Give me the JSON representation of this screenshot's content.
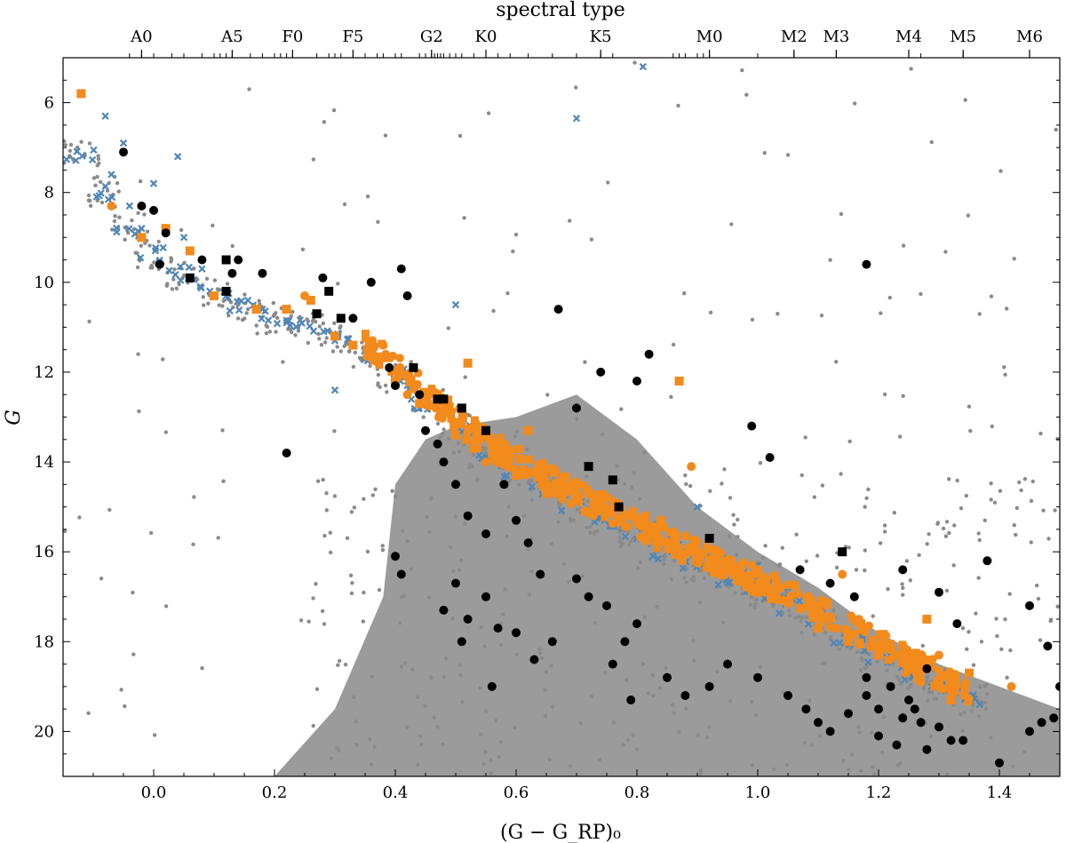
{
  "chart_data": {
    "type": "scatter",
    "title": "",
    "xlabel": "(G − G_RP)₀",
    "ylabel": "G",
    "top_axis_label": "spectral type",
    "xlim": [
      -0.15,
      1.5
    ],
    "ylim": [
      21,
      5
    ],
    "x_ticks": [
      0.0,
      0.2,
      0.4,
      0.6,
      0.8,
      1.0,
      1.2,
      1.4
    ],
    "x_tick_labels": [
      "0.0",
      "0.2",
      "0.4",
      "0.6",
      "0.8",
      "1.0",
      "1.2",
      "1.4"
    ],
    "y_ticks": [
      6,
      8,
      10,
      12,
      14,
      16,
      18,
      20
    ],
    "y_tick_labels": [
      "6",
      "8",
      "10",
      "12",
      "14",
      "16",
      "18",
      "20"
    ],
    "spectral_types": [
      {
        "label": "A0",
        "x": -0.02
      },
      {
        "label": "A5",
        "x": 0.13
      },
      {
        "label": "F0",
        "x": 0.23
      },
      {
        "label": "F5",
        "x": 0.33
      },
      {
        "label": "G2",
        "x": 0.46
      },
      {
        "label": "K0",
        "x": 0.55
      },
      {
        "label": "K5",
        "x": 0.74
      },
      {
        "label": "M0",
        "x": 0.92
      },
      {
        "label": "M2",
        "x": 1.06
      },
      {
        "label": "M3",
        "x": 1.13
      },
      {
        "label": "M4",
        "x": 1.25
      },
      {
        "label": "M5",
        "x": 1.34
      },
      {
        "label": "M6",
        "x": 1.45
      }
    ],
    "minor_spectral_ticks": [
      -0.04,
      -0.02,
      0.0,
      0.03,
      0.05,
      0.08,
      0.1,
      0.11,
      0.12,
      0.13,
      0.16,
      0.18,
      0.2,
      0.21,
      0.22,
      0.23,
      0.27,
      0.29,
      0.3,
      0.31,
      0.33,
      0.35,
      0.37,
      0.38,
      0.4,
      0.41,
      0.44,
      0.45,
      0.46,
      0.465,
      0.47,
      0.475,
      0.48,
      0.49,
      0.5,
      0.51,
      0.53,
      0.55,
      0.57,
      0.59,
      0.62,
      0.66,
      0.7,
      0.74,
      0.76,
      0.86,
      0.87,
      0.88,
      0.9,
      0.91,
      0.92,
      1.0,
      1.06,
      1.13,
      1.25,
      1.27,
      1.34,
      1.45
    ],
    "series": [
      {
        "name": "field stars",
        "marker": "small-circle",
        "color": "#808080"
      },
      {
        "name": "members (x)",
        "marker": "x",
        "color": "#4f86b8"
      },
      {
        "name": "orange squares",
        "marker": "square",
        "color": "#f28a1c"
      },
      {
        "name": "orange circles",
        "marker": "circle",
        "color": "#f28a1c"
      },
      {
        "name": "black squares",
        "marker": "square",
        "color": "#000000"
      },
      {
        "name": "black circles",
        "marker": "circle",
        "color": "#000000"
      }
    ],
    "sequence_track": [
      [
        -0.12,
        7.2
      ],
      [
        -0.08,
        8.0
      ],
      [
        -0.04,
        8.8
      ],
      [
        0.0,
        9.4
      ],
      [
        0.05,
        9.8
      ],
      [
        0.1,
        10.2
      ],
      [
        0.15,
        10.5
      ],
      [
        0.2,
        10.8
      ],
      [
        0.25,
        11.0
      ],
      [
        0.3,
        11.2
      ],
      [
        0.35,
        11.6
      ],
      [
        0.4,
        12.1
      ],
      [
        0.45,
        12.7
      ],
      [
        0.5,
        13.3
      ],
      [
        0.55,
        13.8
      ],
      [
        0.6,
        14.2
      ],
      [
        0.65,
        14.6
      ],
      [
        0.7,
        15.0
      ],
      [
        0.75,
        15.3
      ],
      [
        0.8,
        15.6
      ],
      [
        0.85,
        16.0
      ],
      [
        0.9,
        16.3
      ],
      [
        0.95,
        16.6
      ],
      [
        1.0,
        16.9
      ],
      [
        1.05,
        17.2
      ],
      [
        1.1,
        17.5
      ],
      [
        1.15,
        17.9
      ],
      [
        1.2,
        18.3
      ],
      [
        1.25,
        18.7
      ],
      [
        1.3,
        19.0
      ],
      [
        1.35,
        19.3
      ]
    ],
    "field_envelope": [
      [
        0.4,
        14.5
      ],
      [
        0.45,
        13.5
      ],
      [
        0.5,
        13.2
      ],
      [
        0.6,
        13.0
      ],
      [
        0.7,
        12.5
      ],
      [
        0.8,
        13.5
      ],
      [
        0.9,
        15.0
      ],
      [
        1.0,
        16.0
      ],
      [
        1.1,
        16.8
      ],
      [
        1.2,
        17.8
      ],
      [
        1.3,
        18.5
      ],
      [
        1.4,
        19.0
      ],
      [
        1.5,
        19.5
      ],
      [
        1.5,
        21.0
      ],
      [
        0.2,
        21.0
      ],
      [
        0.3,
        19.5
      ],
      [
        0.38,
        17.0
      ]
    ],
    "orange_squares": [
      [
        -0.12,
        5.8
      ],
      [
        -0.02,
        9.0
      ],
      [
        0.02,
        8.8
      ],
      [
        0.06,
        9.3
      ],
      [
        0.1,
        10.3
      ],
      [
        0.17,
        10.6
      ],
      [
        0.22,
        10.6
      ],
      [
        0.26,
        10.4
      ],
      [
        0.3,
        11.2
      ],
      [
        0.33,
        11.4
      ],
      [
        0.36,
        11.5
      ],
      [
        0.4,
        12.2
      ],
      [
        0.44,
        12.7
      ],
      [
        0.5,
        13.4
      ],
      [
        0.53,
        13.7
      ],
      [
        0.57,
        14.0
      ],
      [
        0.6,
        14.3
      ],
      [
        0.65,
        14.7
      ],
      [
        0.7,
        14.8
      ],
      [
        0.73,
        14.9
      ],
      [
        0.8,
        15.3
      ],
      [
        0.87,
        12.2
      ],
      [
        0.84,
        15.3
      ],
      [
        0.9,
        16.0
      ],
      [
        0.96,
        16.5
      ],
      [
        1.0,
        16.9
      ],
      [
        1.05,
        17.1
      ],
      [
        1.1,
        17.7
      ],
      [
        1.15,
        18.0
      ],
      [
        1.2,
        18.3
      ],
      [
        1.25,
        18.5
      ],
      [
        1.3,
        18.9
      ],
      [
        1.35,
        18.7
      ],
      [
        1.28,
        17.5
      ],
      [
        1.32,
        19.3
      ],
      [
        0.52,
        11.8
      ],
      [
        0.48,
        12.9
      ],
      [
        0.62,
        13.3
      ]
    ],
    "orange_circles": [
      [
        -0.07,
        8.3
      ],
      [
        0.25,
        10.3
      ],
      [
        0.38,
        11.4
      ],
      [
        0.42,
        12.5
      ],
      [
        0.55,
        14.0
      ],
      [
        0.68,
        14.5
      ],
      [
        0.89,
        14.1
      ],
      [
        1.0,
        16.4
      ],
      [
        1.1,
        17.3
      ],
      [
        1.14,
        16.5
      ],
      [
        1.2,
        18.1
      ],
      [
        1.3,
        18.3
      ],
      [
        1.42,
        19.0
      ],
      [
        1.27,
        18.9
      ]
    ],
    "black_squares": [
      [
        0.06,
        9.9
      ],
      [
        0.12,
        9.5
      ],
      [
        0.12,
        10.2
      ],
      [
        0.27,
        10.7
      ],
      [
        0.29,
        10.2
      ],
      [
        0.31,
        10.8
      ],
      [
        0.43,
        11.9
      ],
      [
        0.47,
        12.6
      ],
      [
        0.51,
        12.8
      ],
      [
        0.55,
        13.3
      ],
      [
        0.72,
        14.1
      ],
      [
        0.76,
        14.4
      ],
      [
        0.77,
        15.0
      ],
      [
        0.92,
        15.7
      ],
      [
        1.14,
        16.0
      ],
      [
        0.48,
        12.6
      ]
    ],
    "black_circles": [
      [
        -0.05,
        7.1
      ],
      [
        -0.02,
        8.3
      ],
      [
        0.0,
        8.4
      ],
      [
        0.02,
        8.9
      ],
      [
        0.01,
        9.6
      ],
      [
        0.08,
        9.5
      ],
      [
        0.13,
        9.8
      ],
      [
        0.14,
        9.5
      ],
      [
        0.18,
        9.8
      ],
      [
        0.22,
        13.8
      ],
      [
        0.28,
        9.9
      ],
      [
        0.33,
        10.8
      ],
      [
        0.36,
        10.0
      ],
      [
        0.39,
        11.9
      ],
      [
        0.4,
        12.3
      ],
      [
        0.41,
        9.7
      ],
      [
        0.42,
        10.3
      ],
      [
        0.44,
        12.5
      ],
      [
        0.4,
        16.1
      ],
      [
        0.41,
        16.5
      ],
      [
        0.45,
        13.3
      ],
      [
        0.47,
        13.6
      ],
      [
        0.48,
        14.0
      ],
      [
        0.5,
        14.5
      ],
      [
        0.52,
        15.2
      ],
      [
        0.55,
        15.6
      ],
      [
        0.58,
        14.5
      ],
      [
        0.6,
        15.3
      ],
      [
        0.62,
        15.8
      ],
      [
        0.64,
        16.5
      ],
      [
        0.5,
        16.7
      ],
      [
        0.52,
        17.5
      ],
      [
        0.55,
        17.0
      ],
      [
        0.57,
        17.7
      ],
      [
        0.6,
        17.8
      ],
      [
        0.48,
        17.3
      ],
      [
        0.51,
        18.0
      ],
      [
        0.63,
        18.4
      ],
      [
        0.66,
        18.0
      ],
      [
        0.56,
        19.0
      ],
      [
        0.67,
        10.6
      ],
      [
        0.7,
        12.8
      ],
      [
        0.74,
        12.0
      ],
      [
        0.8,
        12.2
      ],
      [
        0.82,
        11.6
      ],
      [
        0.7,
        16.6
      ],
      [
        0.72,
        17.0
      ],
      [
        0.75,
        17.2
      ],
      [
        0.78,
        18.0
      ],
      [
        0.8,
        17.6
      ],
      [
        0.76,
        18.5
      ],
      [
        0.79,
        19.3
      ],
      [
        0.85,
        18.8
      ],
      [
        0.88,
        19.2
      ],
      [
        0.92,
        19.0
      ],
      [
        0.95,
        18.5
      ],
      [
        1.0,
        18.8
      ],
      [
        1.05,
        19.2
      ],
      [
        1.08,
        19.5
      ],
      [
        0.99,
        13.2
      ],
      [
        1.02,
        13.9
      ],
      [
        1.07,
        16.4
      ],
      [
        1.12,
        16.7
      ],
      [
        1.18,
        9.6
      ],
      [
        1.16,
        17.0
      ],
      [
        1.18,
        19.2
      ],
      [
        1.2,
        19.5
      ],
      [
        1.22,
        19.0
      ],
      [
        1.24,
        19.7
      ],
      [
        1.25,
        19.3
      ],
      [
        1.27,
        19.8
      ],
      [
        1.18,
        18.8
      ],
      [
        1.15,
        19.6
      ],
      [
        1.12,
        20.0
      ],
      [
        1.1,
        19.8
      ],
      [
        1.2,
        20.1
      ],
      [
        1.23,
        20.3
      ],
      [
        1.26,
        19.5
      ],
      [
        1.28,
        20.4
      ],
      [
        1.3,
        19.9
      ],
      [
        1.32,
        20.2
      ],
      [
        1.34,
        20.2
      ],
      [
        1.3,
        16.9
      ],
      [
        1.33,
        17.6
      ],
      [
        1.38,
        16.2
      ],
      [
        1.4,
        20.7
      ],
      [
        1.45,
        20.0
      ],
      [
        1.47,
        19.8
      ],
      [
        1.49,
        19.7
      ],
      [
        1.5,
        19.0
      ],
      [
        1.45,
        17.2
      ],
      [
        1.48,
        18.1
      ],
      [
        1.28,
        18.6
      ],
      [
        1.24,
        16.4
      ]
    ],
    "x_markers": [
      [
        -0.08,
        6.3
      ],
      [
        -0.07,
        7.6
      ],
      [
        -0.05,
        6.9
      ],
      [
        -0.04,
        8.3
      ],
      [
        -0.02,
        8.8
      ],
      [
        0.0,
        7.8
      ],
      [
        0.04,
        7.2
      ],
      [
        0.05,
        9.0
      ],
      [
        0.08,
        9.7
      ],
      [
        0.12,
        10.3
      ],
      [
        0.18,
        10.6
      ],
      [
        0.22,
        10.9
      ],
      [
        0.3,
        11.3
      ],
      [
        0.35,
        11.5
      ],
      [
        0.5,
        10.5
      ],
      [
        0.7,
        6.35
      ],
      [
        0.81,
        5.2
      ],
      [
        0.3,
        12.4
      ],
      [
        0.42,
        12.3
      ],
      [
        0.9,
        15.0
      ],
      [
        1.0,
        16.3
      ],
      [
        1.05,
        16.8
      ]
    ]
  }
}
